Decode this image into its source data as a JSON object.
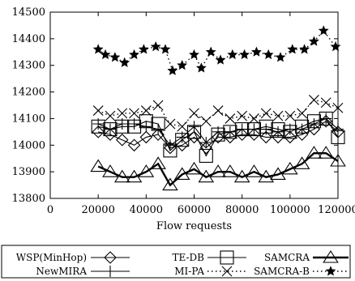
{
  "chart_data": {
    "type": "line",
    "title": "",
    "xlabel": "Flow requests",
    "ylabel": "",
    "xlim": [
      0,
      120000
    ],
    "ylim": [
      13800,
      14500
    ],
    "xticks": [
      "0",
      "20000",
      "40000",
      "60000",
      "80000",
      "100000",
      "120000"
    ],
    "yticks": [
      "13800",
      "13900",
      "14000",
      "14100",
      "14200",
      "14300",
      "14400",
      "14500"
    ],
    "grid": false,
    "legend_position": "bottom",
    "series": [
      {
        "name": "WSP(MinHop)",
        "marker": "diamond",
        "line": "solid",
        "x": [
          20000,
          25000,
          30000,
          35000,
          40000,
          45000,
          50000,
          55000,
          60000,
          65000,
          70000,
          75000,
          80000,
          85000,
          90000,
          95000,
          100000,
          105000,
          110000,
          115000,
          120000
        ],
        "y": [
          14050,
          14040,
          14020,
          14000,
          14030,
          14040,
          13990,
          14000,
          14030,
          13990,
          14030,
          14030,
          14040,
          14040,
          14030,
          14030,
          14030,
          14040,
          14060,
          14090,
          14050
        ]
      },
      {
        "name": "NewMIRA",
        "marker": "plus",
        "line": "solid",
        "x": [
          20000,
          25000,
          30000,
          35000,
          40000,
          45000,
          50000,
          55000,
          60000,
          65000,
          70000,
          75000,
          80000,
          85000,
          90000,
          95000,
          100000,
          105000,
          110000,
          115000,
          120000
        ],
        "y": [
          14080,
          14060,
          14080,
          14080,
          14070,
          14060,
          14000,
          14030,
          14070,
          14010,
          14050,
          14050,
          14060,
          14060,
          14060,
          14050,
          14060,
          14060,
          14080,
          14100,
          14060
        ]
      },
      {
        "name": "TE-DB",
        "marker": "square",
        "line": "solid",
        "x": [
          20000,
          25000,
          30000,
          35000,
          40000,
          45000,
          50000,
          55000,
          60000,
          65000,
          70000,
          75000,
          80000,
          85000,
          90000,
          95000,
          100000,
          105000,
          110000,
          115000,
          120000
        ],
        "y": [
          14070,
          14060,
          14070,
          14070,
          14090,
          14080,
          13980,
          14020,
          14050,
          13960,
          14040,
          14050,
          14060,
          14060,
          14070,
          14060,
          14050,
          14070,
          14090,
          14100,
          14030
        ]
      },
      {
        "name": "MI-PA",
        "marker": "x",
        "line": "dotted",
        "x": [
          20000,
          25000,
          30000,
          35000,
          40000,
          45000,
          50000,
          55000,
          60000,
          65000,
          70000,
          75000,
          80000,
          85000,
          90000,
          95000,
          100000,
          105000,
          110000,
          115000,
          120000
        ],
        "y": [
          14130,
          14110,
          14120,
          14120,
          14130,
          14150,
          14080,
          14070,
          14120,
          14090,
          14130,
          14100,
          14110,
          14100,
          14120,
          14110,
          14110,
          14120,
          14170,
          14160,
          14140
        ]
      },
      {
        "name": "SAMCRA",
        "marker": "triangle",
        "line": "solid",
        "x": [
          20000,
          25000,
          30000,
          35000,
          40000,
          45000,
          50000,
          55000,
          60000,
          65000,
          70000,
          75000,
          80000,
          85000,
          90000,
          95000,
          100000,
          105000,
          110000,
          115000,
          120000
        ],
        "y": [
          13920,
          13900,
          13880,
          13880,
          13900,
          13930,
          13850,
          13890,
          13910,
          13880,
          13900,
          13900,
          13880,
          13900,
          13880,
          13890,
          13910,
          13930,
          13970,
          13970,
          13940
        ]
      },
      {
        "name": "SAMCRA-B",
        "marker": "star",
        "line": "dotted",
        "x": [
          20000,
          23000,
          27000,
          31000,
          35000,
          39000,
          44000,
          48000,
          51000,
          55000,
          60000,
          63000,
          67000,
          71000,
          76000,
          81000,
          86000,
          91000,
          96000,
          101000,
          106000,
          110000,
          114000,
          119000
        ],
        "y": [
          14360,
          14340,
          14330,
          14310,
          14340,
          14360,
          14370,
          14360,
          14280,
          14300,
          14340,
          14290,
          14350,
          14320,
          14340,
          14340,
          14350,
          14340,
          14330,
          14360,
          14360,
          14390,
          14430,
          14370
        ]
      }
    ]
  }
}
